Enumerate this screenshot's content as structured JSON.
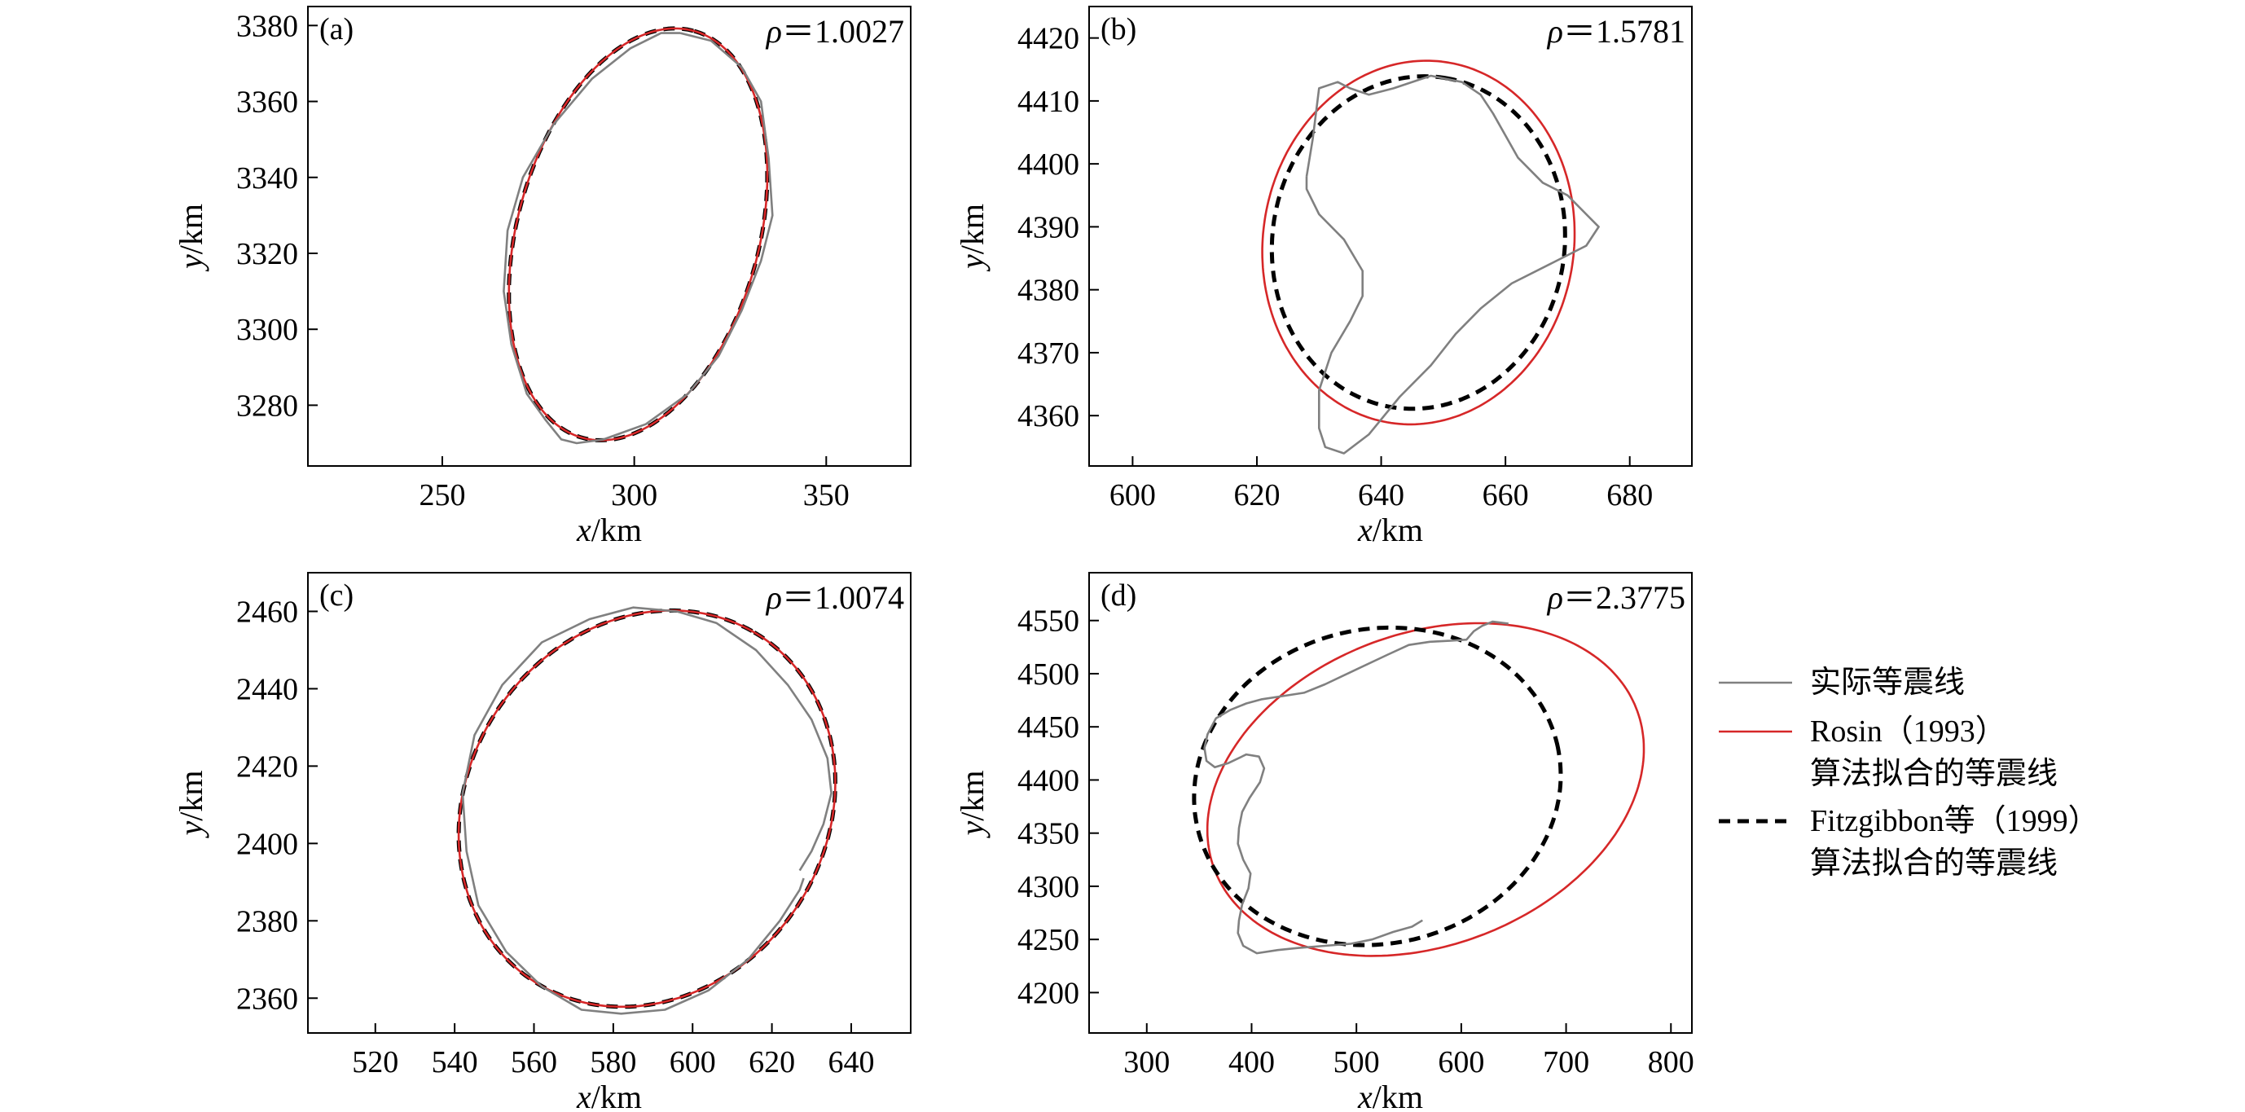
{
  "colors": {
    "actual": "#808080",
    "rosin": "#d62728",
    "fitzgibbon": "#000000",
    "axes": "#000000"
  },
  "legend": {
    "items": [
      {
        "key": "actual",
        "lines": [
          "实际等震线"
        ],
        "style": "solid"
      },
      {
        "key": "rosin",
        "lines": [
          "Rosin（1993）",
          "算法拟合的等震线"
        ],
        "style": "solid"
      },
      {
        "key": "fitzgibbon",
        "lines": [
          "Fitzgibbon等（1999）",
          "算法拟合的等震线"
        ],
        "style": "dashed"
      }
    ]
  },
  "chart_data": [
    {
      "type": "line",
      "panel": "(a)",
      "rho_symbol": "ρ",
      "rho_text": "＝1.0027",
      "xlabel_var": "x",
      "xlabel_unit": "/km",
      "ylabel_var": "y",
      "ylabel_unit": "/km",
      "xlim": [
        215,
        372
      ],
      "ylim": [
        3264,
        3385
      ],
      "xticks": [
        250,
        300,
        350
      ],
      "yticks": [
        3280,
        3300,
        3320,
        3340,
        3360,
        3380
      ],
      "series": [
        {
          "key": "fitzgibbon",
          "ellipse": {
            "cx": 301,
            "cy": 3325,
            "a": 55.5,
            "b": 31.5,
            "angle_deg": 75
          }
        },
        {
          "key": "rosin",
          "ellipse": {
            "cx": 301,
            "cy": 3325,
            "a": 55.5,
            "b": 31.5,
            "angle_deg": 75
          }
        },
        {
          "key": "actual",
          "points": [
            [
              312,
              3378
            ],
            [
              320,
              3376
            ],
            [
              328,
              3369
            ],
            [
              333,
              3360
            ],
            [
              335,
              3345
            ],
            [
              336,
              3330
            ],
            [
              333,
              3318
            ],
            [
              328,
              3305
            ],
            [
              322,
              3293
            ],
            [
              314,
              3283
            ],
            [
              303,
              3275
            ],
            [
              292,
              3271
            ],
            [
              285,
              3270
            ],
            [
              281,
              3271
            ],
            [
              277,
              3276
            ],
            [
              272,
              3283
            ],
            [
              268,
              3296
            ],
            [
              266,
              3310
            ],
            [
              267,
              3326
            ],
            [
              271,
              3340
            ],
            [
              279,
              3354
            ],
            [
              289,
              3366
            ],
            [
              299,
              3374
            ],
            [
              307,
              3378
            ],
            [
              312,
              3378
            ]
          ]
        }
      ]
    },
    {
      "type": "line",
      "panel": "(b)",
      "rho_symbol": "ρ",
      "rho_text": "＝1.5781",
      "xlabel_var": "x",
      "xlabel_unit": "/km",
      "ylabel_var": "y",
      "ylabel_unit": "/km",
      "xlim": [
        593,
        690
      ],
      "ylim": [
        4352,
        4425
      ],
      "xticks": [
        600,
        620,
        640,
        660,
        680
      ],
      "yticks": [
        4360,
        4370,
        4380,
        4390,
        4400,
        4410,
        4420
      ],
      "series": [
        {
          "key": "rosin",
          "ellipse": {
            "cx": 646,
            "cy": 4387.5,
            "a": 29,
            "b": 25,
            "angle_deg": 80
          }
        },
        {
          "key": "fitzgibbon",
          "ellipse": {
            "cx": 646,
            "cy": 4387.5,
            "a": 26.5,
            "b": 23.5,
            "angle_deg": 80
          }
        },
        {
          "key": "actual",
          "points": [
            [
              628,
              4398
            ],
            [
              629,
              4404
            ],
            [
              630,
              4412
            ],
            [
              633,
              4413
            ],
            [
              635,
              4412
            ],
            [
              638,
              4411
            ],
            [
              642,
              4412
            ],
            [
              648,
              4414
            ],
            [
              653,
              4413
            ],
            [
              656,
              4411
            ],
            [
              658,
              4408
            ],
            [
              662,
              4401
            ],
            [
              666,
              4397
            ],
            [
              670,
              4395
            ],
            [
              673,
              4392
            ],
            [
              675,
              4390
            ],
            [
              673,
              4387
            ],
            [
              667,
              4384
            ],
            [
              661,
              4381
            ],
            [
              656,
              4377
            ],
            [
              652,
              4373
            ],
            [
              648,
              4368
            ],
            [
              643,
              4363
            ],
            [
              638,
              4357
            ],
            [
              634,
              4354
            ],
            [
              631,
              4355
            ],
            [
              630,
              4358
            ],
            [
              630,
              4364
            ],
            [
              632,
              4370
            ],
            [
              635,
              4375
            ],
            [
              637,
              4379
            ],
            [
              637,
              4383
            ],
            [
              634,
              4388
            ],
            [
              630,
              4392
            ],
            [
              628,
              4396
            ],
            [
              628,
              4398
            ]
          ]
        }
      ]
    },
    {
      "type": "line",
      "panel": "(c)",
      "rho_symbol": "ρ",
      "rho_text": "＝1.0074",
      "xlabel_var": "x",
      "xlabel_unit": "/km",
      "ylabel_var": "y",
      "ylabel_unit": "/km",
      "xlim": [
        503,
        655
      ],
      "ylim": [
        2351,
        2470
      ],
      "xticks": [
        520,
        540,
        560,
        580,
        600,
        620,
        640
      ],
      "yticks": [
        2360,
        2380,
        2400,
        2420,
        2440,
        2460
      ],
      "series": [
        {
          "key": "fitzgibbon",
          "ellipse": {
            "cx": 588.5,
            "cy": 2409,
            "a": 53,
            "b": 45.5,
            "angle_deg": 60
          }
        },
        {
          "key": "rosin",
          "ellipse": {
            "cx": 588.5,
            "cy": 2409,
            "a": 53,
            "b": 45.5,
            "angle_deg": 60
          }
        },
        {
          "key": "actual",
          "points": [
            [
              627,
              2393
            ],
            [
              630,
              2398
            ],
            [
              633,
              2405
            ],
            [
              635,
              2413
            ],
            [
              634,
              2422
            ],
            [
              630,
              2432
            ],
            [
              624,
              2441
            ],
            [
              616,
              2450
            ],
            [
              606,
              2457
            ],
            [
              596,
              2460
            ],
            [
              585,
              2461
            ],
            [
              574,
              2458
            ],
            [
              562,
              2452
            ],
            [
              552,
              2441
            ],
            [
              545,
              2428
            ],
            [
              542,
              2413
            ],
            [
              543,
              2398
            ],
            [
              546,
              2384
            ],
            [
              553,
              2372
            ],
            [
              562,
              2363
            ],
            [
              572,
              2357
            ],
            [
              582,
              2356
            ],
            [
              593,
              2357
            ],
            [
              604,
              2362
            ],
            [
              614,
              2370
            ],
            [
              622,
              2380
            ],
            [
              627,
              2388
            ],
            [
              628,
              2391
            ]
          ]
        }
      ]
    },
    {
      "type": "line",
      "panel": "(d)",
      "rho_symbol": "ρ",
      "rho_text": "＝2.3775",
      "xlabel_var": "x",
      "xlabel_unit": "/km",
      "ylabel_var": "y",
      "ylabel_unit": "/km",
      "xlim": [
        245,
        820
      ],
      "ylim": [
        4162,
        4595
      ],
      "xticks": [
        300,
        400,
        500,
        600,
        700,
        800
      ],
      "yticks": [
        4200,
        4250,
        4300,
        4350,
        4400,
        4450,
        4500,
        4550
      ],
      "series": [
        {
          "key": "rosin",
          "ellipse": {
            "cx": 566,
            "cy": 4391,
            "a": 215,
            "b": 147,
            "angle_deg": 20
          }
        },
        {
          "key": "fitzgibbon",
          "ellipse": {
            "cx": 520,
            "cy": 4394,
            "a": 176,
            "b": 148,
            "angle_deg": 12
          }
        },
        {
          "key": "actual",
          "points": [
            [
              645,
              4547
            ],
            [
              630,
              4549
            ],
            [
              620,
              4545
            ],
            [
              612,
              4540
            ],
            [
              605,
              4532
            ],
            [
              590,
              4531
            ],
            [
              570,
              4530
            ],
            [
              550,
              4527
            ],
            [
              530,
              4518
            ],
            [
              500,
              4504
            ],
            [
              470,
              4490
            ],
            [
              450,
              4482
            ],
            [
              430,
              4479
            ],
            [
              410,
              4476
            ],
            [
              395,
              4472
            ],
            [
              380,
              4466
            ],
            [
              366,
              4458
            ],
            [
              358,
              4443
            ],
            [
              355,
              4430
            ],
            [
              357,
              4418
            ],
            [
              365,
              4412
            ],
            [
              378,
              4416
            ],
            [
              395,
              4424
            ],
            [
              407,
              4422
            ],
            [
              412,
              4411
            ],
            [
              408,
              4398
            ],
            [
              398,
              4383
            ],
            [
              391,
              4370
            ],
            [
              388,
              4355
            ],
            [
              387,
              4340
            ],
            [
              392,
              4325
            ],
            [
              399,
              4312
            ],
            [
              397,
              4298
            ],
            [
              391,
              4283
            ],
            [
              388,
              4268
            ],
            [
              387,
              4256
            ],
            [
              392,
              4244
            ],
            [
              405,
              4237
            ],
            [
              425,
              4240
            ],
            [
              445,
              4242
            ],
            [
              470,
              4244
            ],
            [
              495,
              4246
            ],
            [
              515,
              4250
            ],
            [
              535,
              4257
            ],
            [
              553,
              4262
            ],
            [
              563,
              4268
            ]
          ]
        }
      ]
    }
  ]
}
